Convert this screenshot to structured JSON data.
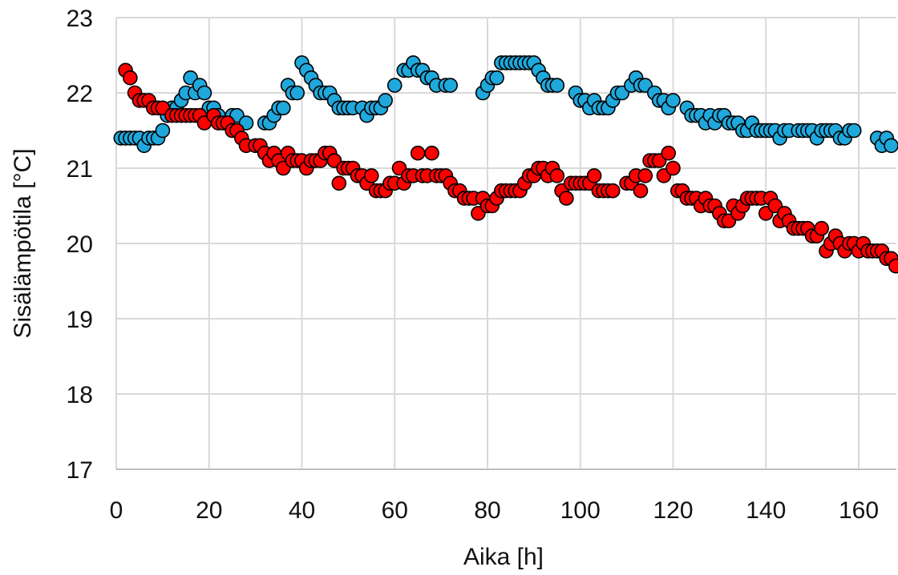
{
  "chart_data": {
    "type": "scatter",
    "xlabel": "Aika [h]",
    "ylabel": "Sisälämpötila [°C]",
    "xlim": [
      0,
      168
    ],
    "ylim": [
      17,
      23
    ],
    "xticks": [
      0,
      20,
      40,
      60,
      80,
      100,
      120,
      140,
      160
    ],
    "yticks": [
      17,
      18,
      19,
      20,
      21,
      22,
      23
    ],
    "grid": true,
    "marker_edge_color": "#000000",
    "series": [
      {
        "color": "#1fa8dc",
        "points": [
          [
            1,
            21.4
          ],
          [
            2,
            21.4
          ],
          [
            3,
            21.4
          ],
          [
            4,
            21.4
          ],
          [
            5,
            21.4
          ],
          [
            6,
            21.3
          ],
          [
            7,
            21.4
          ],
          [
            8,
            21.4
          ],
          [
            9,
            21.4
          ],
          [
            10,
            21.5
          ],
          [
            11,
            21.7
          ],
          [
            12,
            21.8
          ],
          [
            13,
            21.8
          ],
          [
            14,
            21.9
          ],
          [
            15,
            22
          ],
          [
            16,
            22.2
          ],
          [
            17,
            22
          ],
          [
            18,
            22.1
          ],
          [
            19,
            22
          ],
          [
            20,
            21.8
          ],
          [
            21,
            21.8
          ],
          [
            22,
            21.7
          ],
          [
            24,
            21.6
          ],
          [
            25,
            21.7
          ],
          [
            26,
            21.7
          ],
          [
            28,
            21.6
          ],
          [
            32,
            21.6
          ],
          [
            33,
            21.6
          ],
          [
            34,
            21.7
          ],
          [
            35,
            21.8
          ],
          [
            36,
            21.8
          ],
          [
            37,
            22.1
          ],
          [
            38,
            22
          ],
          [
            39,
            22
          ],
          [
            40,
            22.4
          ],
          [
            41,
            22.3
          ],
          [
            42,
            22.2
          ],
          [
            43,
            22.1
          ],
          [
            44,
            22
          ],
          [
            45,
            22
          ],
          [
            46,
            22
          ],
          [
            47,
            21.9
          ],
          [
            48,
            21.8
          ],
          [
            49,
            21.8
          ],
          [
            50,
            21.8
          ],
          [
            51,
            21.8
          ],
          [
            53,
            21.8
          ],
          [
            54,
            21.7
          ],
          [
            55,
            21.8
          ],
          [
            56,
            21.8
          ],
          [
            57,
            21.8
          ],
          [
            58,
            21.9
          ],
          [
            60,
            22.1
          ],
          [
            62,
            22.3
          ],
          [
            63,
            22.3
          ],
          [
            64,
            22.4
          ],
          [
            65,
            22.3
          ],
          [
            66,
            22.3
          ],
          [
            67,
            22.2
          ],
          [
            68,
            22.2
          ],
          [
            69,
            22.1
          ],
          [
            71,
            22.1
          ],
          [
            72,
            22.1
          ],
          [
            79,
            22
          ],
          [
            80,
            22.1
          ],
          [
            81,
            22.2
          ],
          [
            82,
            22.2
          ],
          [
            83,
            22.4
          ],
          [
            84,
            22.4
          ],
          [
            85,
            22.4
          ],
          [
            86,
            22.4
          ],
          [
            87,
            22.4
          ],
          [
            88,
            22.4
          ],
          [
            89,
            22.4
          ],
          [
            90,
            22.4
          ],
          [
            91,
            22.3
          ],
          [
            92,
            22.2
          ],
          [
            93,
            22.1
          ],
          [
            94,
            22.1
          ],
          [
            95,
            22.1
          ],
          [
            99,
            22
          ],
          [
            100,
            21.9
          ],
          [
            101,
            21.9
          ],
          [
            102,
            21.8
          ],
          [
            103,
            21.9
          ],
          [
            104,
            21.8
          ],
          [
            105,
            21.8
          ],
          [
            106,
            21.8
          ],
          [
            107,
            21.9
          ],
          [
            108,
            22
          ],
          [
            109,
            22
          ],
          [
            111,
            22.1
          ],
          [
            112,
            22.2
          ],
          [
            113,
            22.1
          ],
          [
            114,
            22.1
          ],
          [
            116,
            22
          ],
          [
            117,
            21.9
          ],
          [
            118,
            21.9
          ],
          [
            119,
            21.8
          ],
          [
            120,
            21.9
          ],
          [
            123,
            21.8
          ],
          [
            124,
            21.7
          ],
          [
            125,
            21.7
          ],
          [
            126,
            21.7
          ],
          [
            127,
            21.6
          ],
          [
            128,
            21.7
          ],
          [
            129,
            21.6
          ],
          [
            130,
            21.7
          ],
          [
            131,
            21.7
          ],
          [
            132,
            21.6
          ],
          [
            133,
            21.6
          ],
          [
            134,
            21.6
          ],
          [
            135,
            21.5
          ],
          [
            136,
            21.5
          ],
          [
            137,
            21.6
          ],
          [
            138,
            21.5
          ],
          [
            139,
            21.5
          ],
          [
            140,
            21.5
          ],
          [
            141,
            21.5
          ],
          [
            142,
            21.5
          ],
          [
            143,
            21.4
          ],
          [
            144,
            21.5
          ],
          [
            145,
            21.5
          ],
          [
            147,
            21.5
          ],
          [
            148,
            21.5
          ],
          [
            149,
            21.5
          ],
          [
            150,
            21.5
          ],
          [
            151,
            21.4
          ],
          [
            152,
            21.5
          ],
          [
            153,
            21.5
          ],
          [
            154,
            21.5
          ],
          [
            155,
            21.5
          ],
          [
            156,
            21.4
          ],
          [
            157,
            21.4
          ],
          [
            158,
            21.5
          ],
          [
            159,
            21.5
          ],
          [
            164,
            21.4
          ],
          [
            165,
            21.3
          ],
          [
            166,
            21.4
          ],
          [
            167,
            21.3
          ]
        ]
      },
      {
        "color": "#ff0000",
        "points": [
          [
            2,
            22.3
          ],
          [
            3,
            22.2
          ],
          [
            4,
            22
          ],
          [
            5,
            21.9
          ],
          [
            6,
            21.9
          ],
          [
            7,
            21.9
          ],
          [
            8,
            21.8
          ],
          [
            9,
            21.8
          ],
          [
            10,
            21.8
          ],
          [
            12,
            21.7
          ],
          [
            13,
            21.7
          ],
          [
            14,
            21.7
          ],
          [
            15,
            21.7
          ],
          [
            16,
            21.7
          ],
          [
            17,
            21.7
          ],
          [
            18,
            21.7
          ],
          [
            19,
            21.6
          ],
          [
            21,
            21.7
          ],
          [
            22,
            21.6
          ],
          [
            23,
            21.6
          ],
          [
            24,
            21.6
          ],
          [
            25,
            21.5
          ],
          [
            26,
            21.5
          ],
          [
            27,
            21.4
          ],
          [
            28,
            21.3
          ],
          [
            30,
            21.3
          ],
          [
            31,
            21.3
          ],
          [
            32,
            21.2
          ],
          [
            33,
            21.1
          ],
          [
            34,
            21.2
          ],
          [
            35,
            21.1
          ],
          [
            36,
            21
          ],
          [
            37,
            21.2
          ],
          [
            38,
            21.1
          ],
          [
            39,
            21.1
          ],
          [
            40,
            21.1
          ],
          [
            41,
            21
          ],
          [
            42,
            21.1
          ],
          [
            43,
            21.1
          ],
          [
            44,
            21.1
          ],
          [
            45,
            21.2
          ],
          [
            46,
            21.2
          ],
          [
            47,
            21.1
          ],
          [
            48,
            20.8
          ],
          [
            49,
            21
          ],
          [
            50,
            21
          ],
          [
            51,
            21
          ],
          [
            52,
            20.9
          ],
          [
            53,
            20.9
          ],
          [
            54,
            20.8
          ],
          [
            55,
            20.9
          ],
          [
            56,
            20.7
          ],
          [
            57,
            20.7
          ],
          [
            58,
            20.7
          ],
          [
            59,
            20.8
          ],
          [
            60,
            20.8
          ],
          [
            61,
            21
          ],
          [
            62,
            20.8
          ],
          [
            63,
            20.9
          ],
          [
            64,
            20.9
          ],
          [
            65,
            21.2
          ],
          [
            66,
            20.9
          ],
          [
            67,
            20.9
          ],
          [
            68,
            21.2
          ],
          [
            69,
            20.9
          ],
          [
            70,
            20.9
          ],
          [
            71,
            20.9
          ],
          [
            72,
            20.8
          ],
          [
            73,
            20.7
          ],
          [
            74,
            20.7
          ],
          [
            75,
            20.6
          ],
          [
            76,
            20.6
          ],
          [
            77,
            20.6
          ],
          [
            78,
            20.4
          ],
          [
            79,
            20.6
          ],
          [
            80,
            20.5
          ],
          [
            81,
            20.5
          ],
          [
            82,
            20.6
          ],
          [
            83,
            20.7
          ],
          [
            84,
            20.7
          ],
          [
            85,
            20.7
          ],
          [
            86,
            20.7
          ],
          [
            87,
            20.7
          ],
          [
            88,
            20.8
          ],
          [
            89,
            20.9
          ],
          [
            90,
            20.9
          ],
          [
            91,
            21
          ],
          [
            92,
            21
          ],
          [
            93,
            20.9
          ],
          [
            94,
            21
          ],
          [
            95,
            20.9
          ],
          [
            96,
            20.7
          ],
          [
            97,
            20.6
          ],
          [
            98,
            20.8
          ],
          [
            99,
            20.8
          ],
          [
            100,
            20.8
          ],
          [
            101,
            20.8
          ],
          [
            102,
            20.8
          ],
          [
            103,
            20.9
          ],
          [
            104,
            20.7
          ],
          [
            105,
            20.7
          ],
          [
            106,
            20.7
          ],
          [
            107,
            20.7
          ],
          [
            110,
            20.8
          ],
          [
            111,
            20.8
          ],
          [
            112,
            20.9
          ],
          [
            113,
            20.7
          ],
          [
            114,
            20.9
          ],
          [
            115,
            21.1
          ],
          [
            116,
            21.1
          ],
          [
            117,
            21.1
          ],
          [
            118,
            20.9
          ],
          [
            119,
            21.2
          ],
          [
            120,
            21
          ],
          [
            121,
            20.7
          ],
          [
            122,
            20.7
          ],
          [
            123,
            20.6
          ],
          [
            124,
            20.6
          ],
          [
            125,
            20.6
          ],
          [
            126,
            20.5
          ],
          [
            127,
            20.6
          ],
          [
            128,
            20.5
          ],
          [
            129,
            20.5
          ],
          [
            130,
            20.4
          ],
          [
            131,
            20.3
          ],
          [
            132,
            20.3
          ],
          [
            133,
            20.5
          ],
          [
            134,
            20.4
          ],
          [
            135,
            20.5
          ],
          [
            136,
            20.6
          ],
          [
            137,
            20.6
          ],
          [
            138,
            20.6
          ],
          [
            139,
            20.6
          ],
          [
            140,
            20.4
          ],
          [
            141,
            20.6
          ],
          [
            142,
            20.5
          ],
          [
            143,
            20.3
          ],
          [
            144,
            20.4
          ],
          [
            145,
            20.3
          ],
          [
            146,
            20.2
          ],
          [
            147,
            20.2
          ],
          [
            148,
            20.2
          ],
          [
            149,
            20.2
          ],
          [
            150,
            20.1
          ],
          [
            151,
            20.1
          ],
          [
            152,
            20.2
          ],
          [
            153,
            19.9
          ],
          [
            154,
            20
          ],
          [
            155,
            20.1
          ],
          [
            156,
            20
          ],
          [
            157,
            19.9
          ],
          [
            158,
            20
          ],
          [
            159,
            20
          ],
          [
            160,
            19.9
          ],
          [
            161,
            20
          ],
          [
            162,
            19.9
          ],
          [
            163,
            19.9
          ],
          [
            164,
            19.9
          ],
          [
            165,
            19.9
          ],
          [
            166,
            19.8
          ],
          [
            167,
            19.8
          ],
          [
            168,
            19.7
          ]
        ]
      }
    ]
  }
}
